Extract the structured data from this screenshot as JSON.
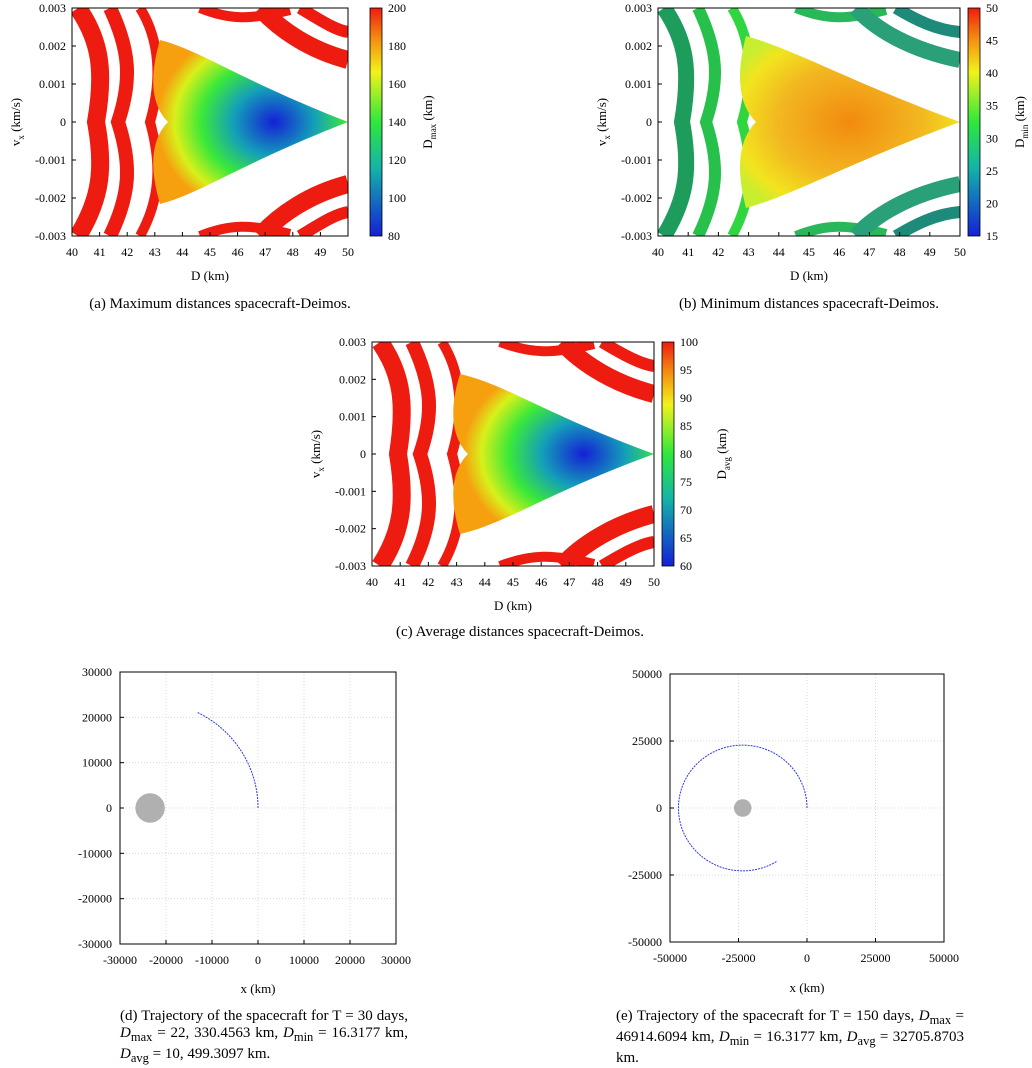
{
  "chart_data": [
    {
      "id": "a",
      "type": "heatmap",
      "xlabel": "D (km)",
      "ylabel": "v_x (km/s)",
      "ylabel_main": "v",
      "ylabel_sub": "x",
      "ylabel_rest": " (km/s)",
      "xlim": [
        40,
        50
      ],
      "ylim": [
        -0.003,
        0.003
      ],
      "xticks": [
        "40",
        "41",
        "42",
        "43",
        "44",
        "45",
        "46",
        "47",
        "48",
        "49",
        "50"
      ],
      "yticks": [
        "0.003",
        "0.002",
        "0.001",
        "0",
        "-0.001",
        "-0.002",
        "-0.003"
      ],
      "colorbar": {
        "label": "D_max (km)",
        "label_main": "D",
        "label_sub": "max",
        "label_rest": " (km)",
        "range": [
          80,
          200
        ],
        "ticks": [
          "200",
          "180",
          "160",
          "140",
          "120",
          "100",
          "80"
        ]
      },
      "colormap": "blue-green-yellow-red (low→high), off-scale saturates red, escape regions white",
      "caption": "(a) Maximum distances spacecraft-Deimos."
    },
    {
      "id": "b",
      "type": "heatmap",
      "xlabel": "D (km)",
      "ylabel": "v_x (km/s)",
      "ylabel_main": "v",
      "ylabel_sub": "x",
      "ylabel_rest": " (km/s)",
      "xlim": [
        40,
        50
      ],
      "ylim": [
        -0.003,
        0.003
      ],
      "xticks": [
        "40",
        "41",
        "42",
        "43",
        "44",
        "45",
        "46",
        "47",
        "48",
        "49",
        "50"
      ],
      "yticks": [
        "0.003",
        "0.002",
        "0.001",
        "0",
        "-0.001",
        "-0.002",
        "-0.003"
      ],
      "colorbar": {
        "label": "D_min (km)",
        "label_main": "D",
        "label_sub": "min",
        "label_rest": " (km)",
        "range": [
          15,
          50
        ],
        "ticks": [
          "50",
          "45",
          "40",
          "35",
          "30",
          "25",
          "20",
          "15"
        ]
      },
      "colormap": "blue-green-yellow-red (low→high), escape regions white",
      "caption": "(b) Minimum distances spacecraft-Deimos."
    },
    {
      "id": "c",
      "type": "heatmap",
      "xlabel": "D (km)",
      "ylabel": "v_x (km/s)",
      "ylabel_main": "v",
      "ylabel_sub": "x",
      "ylabel_rest": " (km/s)",
      "xlim": [
        40,
        50
      ],
      "ylim": [
        -0.003,
        0.003
      ],
      "xticks": [
        "40",
        "41",
        "42",
        "43",
        "44",
        "45",
        "46",
        "47",
        "48",
        "49",
        "50"
      ],
      "yticks": [
        "0.003",
        "0.002",
        "0.001",
        "0",
        "-0.001",
        "-0.002",
        "-0.003"
      ],
      "colorbar": {
        "label": "D_avg (km)",
        "label_main": "D",
        "label_sub": "avg",
        "label_rest": " (km)",
        "range": [
          60,
          100
        ],
        "ticks": [
          "100",
          "95",
          "90",
          "85",
          "80",
          "75",
          "70",
          "65",
          "60"
        ]
      },
      "colormap": "blue-green-yellow-red (low→high), off-scale saturates red, escape regions white",
      "caption": "(c) Average distances spacecraft-Deimos."
    },
    {
      "id": "d",
      "type": "line",
      "xlabel": "x (km)",
      "ylabel": "",
      "xlim": [
        -30000,
        30000
      ],
      "ylim": [
        -30000,
        30000
      ],
      "xticks": [
        "-30000",
        "-20000",
        "-10000",
        "0",
        "10000",
        "20000",
        "30000"
      ],
      "yticks": [
        "30000",
        "20000",
        "10000",
        "0",
        "-10000",
        "-20000",
        "-30000"
      ],
      "grid": true,
      "body": {
        "x": -23460,
        "y": 0,
        "radius": 3200,
        "color": "#b0b0b0"
      },
      "trajectory": {
        "center_x": -23460,
        "center_y": 0,
        "radius": 23460,
        "start_deg": 0,
        "end_deg": 64,
        "color": "#2a3bdc"
      },
      "caption": "(d) Trajectory of the spacecraft for T = 30 days, D_max = 22,330.4563 km, D_min = 16.3177 km, D_avg = 10,499.3097 km.",
      "caption_parts": {
        "p1": "(d) Trajectory of the spacecraft for T = 30 days, ",
        "dmax": "D",
        "dmax_sub": "max",
        "dmax_val": " = 22, 330.4563 km, ",
        "dmin": "D",
        "dmin_sub": "min",
        "dmin_val": " = 16.3177 km, ",
        "davg": "D",
        "davg_sub": "avg",
        "davg_val": " = 10, 499.3097 km."
      }
    },
    {
      "id": "e",
      "type": "line",
      "xlabel": "x (km)",
      "ylabel": "",
      "xlim": [
        -50000,
        50000
      ],
      "ylim": [
        -50000,
        50000
      ],
      "xticks": [
        "-50000",
        "-25000",
        "0",
        "25000",
        "50000"
      ],
      "yticks": [
        "50000",
        "25000",
        "0",
        "-25000",
        "-50000"
      ],
      "grid": true,
      "body": {
        "x": -23460,
        "y": 0,
        "radius": 3200,
        "color": "#b0b0b0"
      },
      "trajectory": {
        "center_x": -23460,
        "center_y": 0,
        "radius": 23460,
        "start_deg": 0,
        "end_deg": 302,
        "color": "#2a3bdc"
      },
      "caption": "(e) Trajectory of the spacecraft for T = 150 days, D_max = 46914.6094 km, D_min = 16.3177 km, D_avg = 32705.8703 km.",
      "caption_parts": {
        "p1": "(e) Trajectory of the spacecraft for T = 150 days, ",
        "dmax": "D",
        "dmax_sub": "max",
        "dmax_val": " = 46914.6094 km, ",
        "dmin": "D",
        "dmin_sub": "min",
        "dmin_val": " = 16.3177 km, ",
        "davg": "D",
        "davg_sub": "avg",
        "davg_val": " = 32705.8703 km."
      }
    }
  ]
}
